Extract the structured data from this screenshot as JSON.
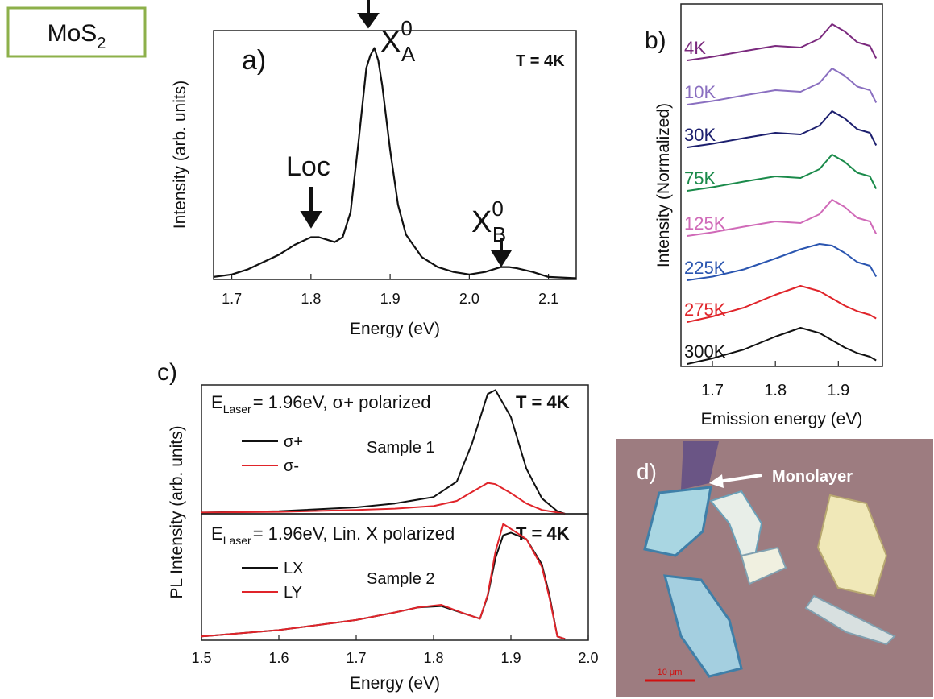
{
  "material": {
    "text": "MoS",
    "subscript": "2"
  },
  "chart_data": [
    {
      "type": "line",
      "panel_label": "a)",
      "xlabel": "Energy (eV)",
      "ylabel": "Intensity (arb. units)",
      "xlim": [
        1.677,
        2.135
      ],
      "ylim": [
        0,
        1
      ],
      "xticks": [
        1.7,
        1.8,
        1.9,
        {
          "value": 2,
          "label": "2.0"
        },
        2.1
      ],
      "peak_a": {
        "symbol": "X",
        "sup": "0",
        "sub": "A"
      },
      "peak_b": {
        "symbol": "X",
        "sup": "0",
        "sub": "B"
      },
      "localized": "Loc",
      "temperature": "T = 4K",
      "color": "#111111",
      "x": [
        1.677,
        1.7,
        1.72,
        1.74,
        1.76,
        1.78,
        1.8,
        1.81,
        1.82,
        1.83,
        1.84,
        1.85,
        1.86,
        1.87,
        1.875,
        1.88,
        1.885,
        1.89,
        1.9,
        1.91,
        1.92,
        1.94,
        1.96,
        1.98,
        2.0,
        2.02,
        2.04,
        2.05,
        2.06,
        2.08,
        2.1,
        2.135
      ],
      "values": [
        0.01,
        0.02,
        0.04,
        0.07,
        0.1,
        0.14,
        0.17,
        0.17,
        0.16,
        0.15,
        0.17,
        0.27,
        0.55,
        0.85,
        0.9,
        0.93,
        0.88,
        0.78,
        0.52,
        0.3,
        0.18,
        0.09,
        0.05,
        0.03,
        0.02,
        0.03,
        0.05,
        0.05,
        0.045,
        0.03,
        0.01,
        0.005
      ]
    },
    {
      "type": "line",
      "panel_label": "b)",
      "xlabel": "Emission energy (eV)",
      "ylabel": "Intensity (Normalized)",
      "xlim": [
        1.65,
        1.97
      ],
      "ylim": [
        0,
        9
      ],
      "xticks": [
        1.7,
        1.8,
        1.9
      ],
      "x": [
        1.66,
        1.7,
        1.75,
        1.8,
        1.84,
        1.87,
        1.89,
        1.91,
        1.93,
        1.95,
        1.96
      ],
      "series": [
        {
          "name": "4K",
          "color": "#7b2a7e",
          "values": [
            7.6,
            7.69,
            7.83,
            7.96,
            7.92,
            8.14,
            8.5,
            8.32,
            8.05,
            7.96,
            7.65
          ]
        },
        {
          "name": "10K",
          "color": "#8a6fc0",
          "values": [
            6.5,
            6.59,
            6.73,
            6.86,
            6.82,
            7.04,
            7.4,
            7.22,
            6.95,
            6.86,
            6.55
          ]
        },
        {
          "name": "30K",
          "color": "#1c1f6e",
          "values": [
            5.44,
            5.53,
            5.67,
            5.8,
            5.76,
            5.98,
            6.34,
            6.16,
            5.89,
            5.8,
            5.49
          ]
        },
        {
          "name": "75K",
          "color": "#1a8a4a",
          "values": [
            4.36,
            4.45,
            4.59,
            4.72,
            4.68,
            4.9,
            5.26,
            5.08,
            4.81,
            4.72,
            4.41
          ]
        },
        {
          "name": "125K",
          "color": "#d06ab8",
          "values": [
            3.24,
            3.33,
            3.47,
            3.6,
            3.56,
            3.78,
            4.14,
            3.96,
            3.69,
            3.6,
            3.29
          ]
        },
        {
          "name": "225K",
          "color": "#2a55b0",
          "values": [
            2.14,
            2.23,
            2.41,
            2.68,
            2.91,
            3.04,
            3.0,
            2.82,
            2.59,
            2.5,
            2.23
          ]
        },
        {
          "name": "275K",
          "color": "#e0242a",
          "values": [
            1.1,
            1.24,
            1.46,
            1.78,
            2.0,
            1.87,
            1.69,
            1.51,
            1.37,
            1.28,
            1.19
          ]
        },
        {
          "name": "300K",
          "color": "#111111",
          "values": [
            0.06,
            0.2,
            0.42,
            0.74,
            0.96,
            0.83,
            0.65,
            0.47,
            0.33,
            0.24,
            0.15
          ]
        }
      ]
    },
    {
      "type": "line",
      "panel_label": "c)",
      "ylabel": "PL Intensity (arb. units)",
      "xlim": [
        1.5,
        2.0
      ],
      "ylim": [
        0,
        1
      ],
      "excitation": {
        "symbol": "E",
        "sub": "Laser",
        "text": "= 1.96eV, σ+ polarized"
      },
      "temperature": "T = 4K",
      "sample": "Sample 1",
      "x": [
        1.5,
        1.6,
        1.7,
        1.75,
        1.8,
        1.83,
        1.85,
        1.87,
        1.88,
        1.9,
        1.92,
        1.94,
        1.96,
        1.97
      ],
      "series": [
        {
          "name": "σ+",
          "color": "#111111",
          "values": [
            0.01,
            0.02,
            0.05,
            0.08,
            0.13,
            0.25,
            0.55,
            0.93,
            0.96,
            0.75,
            0.35,
            0.12,
            0.02,
            0.0
          ]
        },
        {
          "name": "σ-",
          "color": "#e0242a",
          "values": [
            0.01,
            0.015,
            0.03,
            0.04,
            0.06,
            0.1,
            0.17,
            0.24,
            0.23,
            0.16,
            0.08,
            0.03,
            0.01,
            0.0
          ]
        }
      ]
    },
    {
      "type": "line",
      "xlabel": "Energy (eV)",
      "xlim": [
        1.5,
        2.0
      ],
      "ylim": [
        0,
        1
      ],
      "xticks": [
        1.5,
        1.6,
        1.7,
        1.8,
        1.9,
        {
          "value": 2,
          "label": "2.0"
        }
      ],
      "excitation": {
        "symbol": "E",
        "sub": "Laser",
        "text": "= 1.96eV, Lin. X polarized"
      },
      "temperature": "T = 4K",
      "sample": "Sample 2",
      "x": [
        1.5,
        1.6,
        1.7,
        1.75,
        1.78,
        1.81,
        1.84,
        1.86,
        1.87,
        1.88,
        1.89,
        1.9,
        1.92,
        1.94,
        1.95,
        1.96,
        1.97
      ],
      "series": [
        {
          "name": "LX",
          "color": "#111111",
          "values": [
            0.03,
            0.08,
            0.16,
            0.22,
            0.26,
            0.27,
            0.21,
            0.17,
            0.35,
            0.65,
            0.83,
            0.85,
            0.8,
            0.6,
            0.35,
            0.03,
            0.01
          ]
        },
        {
          "name": "LY",
          "color": "#e0242a",
          "values": [
            0.03,
            0.08,
            0.16,
            0.22,
            0.26,
            0.28,
            0.21,
            0.17,
            0.36,
            0.7,
            0.92,
            0.88,
            0.8,
            0.58,
            0.33,
            0.03,
            0.01
          ]
        }
      ]
    }
  ],
  "photo": {
    "panel_label": "d)",
    "annotation": "Monolayer",
    "scale_bar": "10 μm"
  }
}
